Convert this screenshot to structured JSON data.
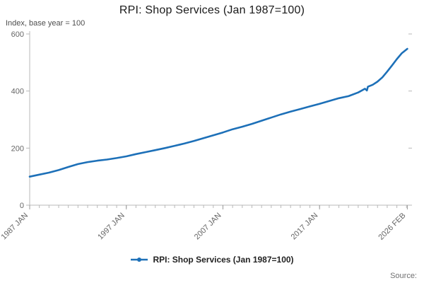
{
  "chart": {
    "title": "RPI: Shop Services (Jan 1987=100)",
    "y_axis_note": "Index, base year = 100",
    "legend_label": "RPI: Shop Services (Jan 1987=100)",
    "source_label": "Source:",
    "accent_color": "#1d70b8",
    "axis_color": "#b8b8b8",
    "tick_text_color": "#666666"
  },
  "chart_data": {
    "type": "line",
    "title": "RPI: Shop Services (Jan 1987=100)",
    "xlabel": "",
    "ylabel": "Index, base year = 100",
    "xlim": [
      1987,
      2026.2
    ],
    "ylim": [
      0,
      600
    ],
    "grid": false,
    "legend_position": "bottom",
    "y_ticks": [
      0,
      200,
      400,
      600
    ],
    "x_ticks": [
      {
        "x": 1987,
        "label": "1987 JAN"
      },
      {
        "x": 1997,
        "label": "1997 JAN"
      },
      {
        "x": 2007,
        "label": "2007 JAN"
      },
      {
        "x": 2017,
        "label": "2017 JAN"
      },
      {
        "x": 2026.083,
        "label": "2026 FEB"
      }
    ],
    "series": [
      {
        "name": "RPI: Shop Services (Jan 1987=100)",
        "x": [
          1987,
          1988,
          1989,
          1990,
          1991,
          1992,
          1993,
          1994,
          1995,
          1996,
          1997,
          1998,
          1999,
          2000,
          2001,
          2002,
          2003,
          2004,
          2005,
          2006,
          2007,
          2008,
          2009,
          2010,
          2011,
          2012,
          2013,
          2014,
          2015,
          2016,
          2017,
          2018,
          2019,
          2020,
          2021,
          2021.7,
          2021.9,
          2022,
          2022.5,
          2023,
          2023.5,
          2024,
          2024.5,
          2025,
          2025.5,
          2026.08
        ],
        "values": [
          100,
          107,
          114,
          123,
          134,
          144,
          151,
          156,
          160,
          165,
          171,
          179,
          186,
          193,
          200,
          208,
          216,
          225,
          235,
          245,
          255,
          266,
          275,
          285,
          296,
          307,
          318,
          328,
          337,
          346,
          355,
          365,
          375,
          382,
          395,
          408,
          402,
          415,
          422,
          433,
          448,
          468,
          490,
          512,
          532,
          548
        ]
      }
    ]
  }
}
